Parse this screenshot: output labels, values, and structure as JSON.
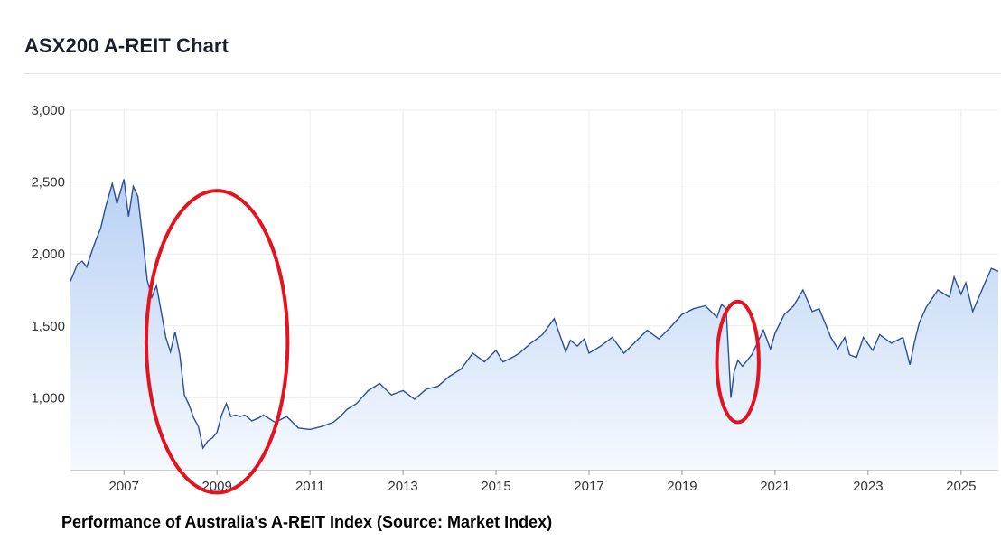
{
  "header": {
    "title": "ASX200 A-REIT Chart"
  },
  "caption": "Performance of Australia's A-REIT Index (Source: Market Index)",
  "colors": {
    "line": "#2a4f9a",
    "fill_top": "#b9d1f4",
    "fill_bottom": "#f5f9fe",
    "annotation": "#e3141f",
    "grid": "#ececec"
  },
  "chart_data": {
    "type": "area",
    "title": "ASX200 A-REIT Chart",
    "xlabel": "",
    "ylabel": "",
    "xlim": [
      2005.85,
      2025.8
    ],
    "ylim": [
      500,
      3000
    ],
    "y_ticks": [
      1000,
      1500,
      2000,
      2500,
      3000
    ],
    "y_tick_labels": [
      "1,000",
      "1,500",
      "2,000",
      "2,500",
      "3,000"
    ],
    "x_ticks": [
      2007,
      2009,
      2011,
      2013,
      2015,
      2017,
      2019,
      2021,
      2023,
      2025
    ],
    "x_tick_labels": [
      "2007",
      "2009",
      "2011",
      "2013",
      "2015",
      "2017",
      "2019",
      "2021",
      "2023",
      "2025"
    ],
    "grid": true,
    "legend": "none",
    "series": [
      {
        "x": [
          2005.85,
          2006.0,
          2006.1,
          2006.2,
          2006.3,
          2006.4,
          2006.5,
          2006.6,
          2006.75,
          2006.85,
          2007.0,
          2007.1,
          2007.2,
          2007.3,
          2007.4,
          2007.5,
          2007.6,
          2007.7,
          2007.8,
          2007.9,
          2008.0,
          2008.1,
          2008.2,
          2008.3,
          2008.4,
          2008.5,
          2008.6,
          2008.7,
          2008.8,
          2008.9,
          2009.0,
          2009.1,
          2009.2,
          2009.3,
          2009.4,
          2009.5,
          2009.6,
          2009.75,
          2009.9,
          2010.0,
          2010.25,
          2010.5,
          2010.75,
          2011.0,
          2011.25,
          2011.5,
          2011.65,
          2011.8,
          2012.0,
          2012.25,
          2012.5,
          2012.75,
          2013.0,
          2013.25,
          2013.5,
          2013.75,
          2014.0,
          2014.25,
          2014.5,
          2014.75,
          2015.0,
          2015.15,
          2015.35,
          2015.5,
          2015.75,
          2016.0,
          2016.25,
          2016.5,
          2016.6,
          2016.75,
          2016.9,
          2017.0,
          2017.25,
          2017.5,
          2017.75,
          2018.0,
          2018.25,
          2018.5,
          2018.75,
          2019.0,
          2019.25,
          2019.5,
          2019.75,
          2019.85,
          2019.95,
          2020.05,
          2020.12,
          2020.2,
          2020.3,
          2020.5,
          2020.75,
          2020.9,
          2021.0,
          2021.2,
          2021.4,
          2021.6,
          2021.8,
          2021.95,
          2022.0,
          2022.2,
          2022.35,
          2022.5,
          2022.6,
          2022.75,
          2022.9,
          2023.1,
          2023.25,
          2023.5,
          2023.75,
          2023.9,
          2024.0,
          2024.1,
          2024.25,
          2024.5,
          2024.75,
          2024.85,
          2025.0,
          2025.1,
          2025.25,
          2025.5,
          2025.65,
          2025.8
        ],
        "y": [
          1810,
          1930,
          1950,
          1910,
          2010,
          2100,
          2180,
          2320,
          2490,
          2350,
          2520,
          2260,
          2470,
          2400,
          2120,
          1820,
          1700,
          1780,
          1600,
          1420,
          1320,
          1460,
          1300,
          1020,
          950,
          860,
          800,
          650,
          700,
          720,
          760,
          880,
          960,
          870,
          880,
          870,
          880,
          840,
          860,
          880,
          830,
          870,
          790,
          780,
          800,
          830,
          870,
          920,
          960,
          1050,
          1100,
          1020,
          1050,
          990,
          1060,
          1080,
          1150,
          1200,
          1310,
          1250,
          1330,
          1250,
          1280,
          1310,
          1380,
          1440,
          1550,
          1320,
          1400,
          1360,
          1410,
          1310,
          1360,
          1420,
          1310,
          1390,
          1470,
          1410,
          1490,
          1580,
          1620,
          1640,
          1560,
          1650,
          1620,
          1000,
          1180,
          1260,
          1220,
          1300,
          1470,
          1340,
          1450,
          1580,
          1640,
          1750,
          1600,
          1620,
          1580,
          1420,
          1340,
          1420,
          1300,
          1280,
          1420,
          1330,
          1440,
          1380,
          1420,
          1230,
          1390,
          1520,
          1630,
          1750,
          1700,
          1840,
          1720,
          1800,
          1600,
          1790,
          1900,
          1880
        ]
      }
    ],
    "annotations": [
      {
        "type": "ellipse",
        "shape": "circle",
        "center_x": 2009.0,
        "center_y": 1390,
        "rx_years": 1.52,
        "ry_value": 1050
      },
      {
        "type": "ellipse",
        "shape": "circle",
        "center_x": 2020.2,
        "center_y": 1250,
        "rx_years": 0.45,
        "ry_value": 420
      }
    ]
  }
}
